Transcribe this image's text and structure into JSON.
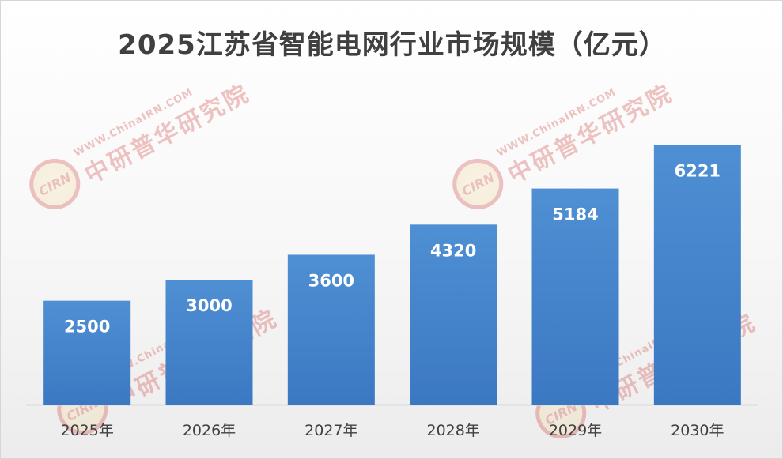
{
  "chart_data": {
    "type": "bar",
    "title": "2025江苏省智能电网行业市场规模（亿元）",
    "categories": [
      "2025年",
      "2026年",
      "2027年",
      "2028年",
      "2029年",
      "2030年"
    ],
    "values": [
      2500,
      3000,
      3600,
      4320,
      5184,
      6221
    ],
    "ylim": [
      0,
      7500
    ],
    "grid": false,
    "legend": "none",
    "bar_color": "#4f8fd3",
    "bar_color_dark": "#3b78c2"
  },
  "watermark": {
    "logo_text": "CIRN",
    "url_text": "WWW.ChinaIRN.COM",
    "name_text": "中研普华研究院"
  }
}
